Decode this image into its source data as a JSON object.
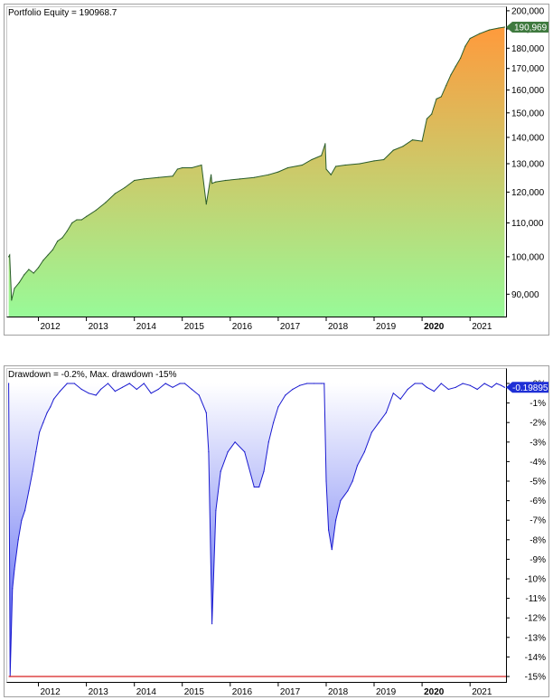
{
  "chart_data": [
    {
      "type": "area",
      "title": "Portfolio Equity = 190968.7",
      "last_value_label": "190,969",
      "x_tick_labels": [
        "2012",
        "2013",
        "2014",
        "2015",
        "2016",
        "2017",
        "2018",
        "2019",
        "2020",
        "2021"
      ],
      "bold_x_tick": "2020",
      "y_tick_labels": [
        "200,000",
        "190,000",
        "180,000",
        "170,000",
        "160,000",
        "150,000",
        "140,000",
        "130,000",
        "120,000",
        "110,000",
        "100,000",
        "90,000"
      ],
      "y_ticks": [
        200000,
        190000,
        180000,
        170000,
        160000,
        150000,
        140000,
        130000,
        120000,
        110000,
        100000,
        90000
      ],
      "y_scale": "log",
      "ylim": [
        84500,
        202000
      ],
      "xlim": [
        2011.35,
        2021.75
      ],
      "gradient_colors": [
        "#ff9a3c",
        "#98fa98"
      ],
      "line_color": "#2b5d2b",
      "x": [
        2011.38,
        2011.4,
        2011.44,
        2011.5,
        2011.6,
        2011.7,
        2011.8,
        2011.9,
        2012.0,
        2012.1,
        2012.2,
        2012.3,
        2012.4,
        2012.5,
        2012.6,
        2012.7,
        2012.8,
        2012.9,
        2013.0,
        2013.2,
        2013.4,
        2013.6,
        2013.8,
        2014.0,
        2014.2,
        2014.5,
        2014.8,
        2014.9,
        2015.0,
        2015.2,
        2015.4,
        2015.5,
        2015.6,
        2015.62,
        2015.7,
        2015.9,
        2016.2,
        2016.5,
        2016.8,
        2017.0,
        2017.2,
        2017.5,
        2017.7,
        2017.9,
        2017.98,
        2018.0,
        2018.1,
        2018.2,
        2018.4,
        2018.7,
        2019.0,
        2019.2,
        2019.4,
        2019.6,
        2019.8,
        2020.0,
        2020.1,
        2020.2,
        2020.3,
        2020.4,
        2020.5,
        2020.6,
        2020.7,
        2020.8,
        2020.9,
        2021.0,
        2021.2,
        2021.4,
        2021.6,
        2021.72
      ],
      "values": [
        100000,
        100500,
        88500,
        91500,
        93000,
        95000,
        96500,
        95500,
        97000,
        99000,
        100500,
        102000,
        104500,
        105500,
        107500,
        110000,
        111000,
        111000,
        112000,
        114000,
        116500,
        119500,
        121500,
        124000,
        124500,
        125000,
        125500,
        128000,
        128500,
        128500,
        129500,
        116000,
        126000,
        123000,
        123500,
        124000,
        124500,
        125000,
        126000,
        127000,
        128500,
        129500,
        131500,
        133000,
        137500,
        128000,
        126000,
        129000,
        129500,
        130000,
        131000,
        131500,
        135000,
        136500,
        139000,
        138500,
        147500,
        149500,
        156000,
        157000,
        162000,
        167000,
        171000,
        175000,
        181000,
        185000,
        187500,
        189500,
        190500,
        190969
      ]
    },
    {
      "type": "area",
      "title": "Drawdown = -0.2%, Max. drawdown -15%",
      "last_value_label": "-0.19895",
      "x_tick_labels": [
        "2012",
        "2013",
        "2014",
        "2015",
        "2016",
        "2017",
        "2018",
        "2019",
        "2020",
        "2021"
      ],
      "bold_x_tick": "2020",
      "y_tick_labels": [
        "0%",
        "-1%",
        "-2%",
        "-3%",
        "-4%",
        "-5%",
        "-6%",
        "-7%",
        "-8%",
        "-9%",
        "-10%",
        "-11%",
        "-12%",
        "-13%",
        "-14%",
        "-15%"
      ],
      "y_ticks": [
        0,
        -1,
        -2,
        -3,
        -4,
        -5,
        -6,
        -7,
        -8,
        -9,
        -10,
        -11,
        -12,
        -13,
        -14,
        -15
      ],
      "ylim": [
        -15.3,
        0.2
      ],
      "xlim": [
        2011.35,
        2021.75
      ],
      "gradient_colors": [
        "#ffffff",
        "#2a3aee"
      ],
      "line_color": "#1a1ad0",
      "max_drawdown_line": -15,
      "max_drawdown_color": "#d62020",
      "x": [
        2011.38,
        2011.41,
        2011.46,
        2011.5,
        2011.58,
        2011.65,
        2011.72,
        2011.8,
        2011.88,
        2011.95,
        2012.02,
        2012.1,
        2012.18,
        2012.25,
        2012.32,
        2012.45,
        2012.6,
        2012.75,
        2012.9,
        2013.05,
        2013.2,
        2013.3,
        2013.45,
        2013.6,
        2013.75,
        2013.9,
        2014.05,
        2014.2,
        2014.35,
        2014.5,
        2014.65,
        2014.8,
        2014.95,
        2015.05,
        2015.2,
        2015.35,
        2015.5,
        2015.55,
        2015.62,
        2015.7,
        2015.8,
        2015.95,
        2016.1,
        2016.3,
        2016.5,
        2016.6,
        2016.7,
        2016.8,
        2016.9,
        2017.0,
        2017.15,
        2017.3,
        2017.45,
        2017.6,
        2017.75,
        2017.9,
        2017.96,
        2018.0,
        2018.05,
        2018.12,
        2018.2,
        2018.3,
        2018.45,
        2018.55,
        2018.65,
        2018.8,
        2018.95,
        2019.1,
        2019.25,
        2019.4,
        2019.55,
        2019.7,
        2019.85,
        2020.0,
        2020.1,
        2020.25,
        2020.4,
        2020.55,
        2020.7,
        2020.85,
        2021.0,
        2021.15,
        2021.3,
        2021.45,
        2021.55,
        2021.65,
        2021.72
      ],
      "values": [
        0,
        -15,
        -10.5,
        -9.5,
        -8,
        -7,
        -6.5,
        -5.5,
        -4.5,
        -3.5,
        -2.5,
        -2,
        -1.5,
        -1.2,
        -0.8,
        -0.4,
        0,
        0,
        -0.3,
        -0.5,
        -0.6,
        -0.3,
        0,
        -0.4,
        -0.2,
        0,
        -0.3,
        0,
        -0.5,
        -0.3,
        0,
        -0.2,
        0,
        0,
        -0.3,
        -0.6,
        -1.5,
        -3.5,
        -12.3,
        -6.5,
        -4.5,
        -3.5,
        -3,
        -3.5,
        -5.3,
        -5.3,
        -4.5,
        -3,
        -2,
        -1.2,
        -0.6,
        -0.3,
        -0.1,
        0,
        0,
        0,
        0,
        -5,
        -7.5,
        -8.5,
        -7,
        -6,
        -5.5,
        -5,
        -4.2,
        -3.5,
        -2.5,
        -2,
        -1.5,
        -0.5,
        -0.8,
        -0.3,
        0,
        0,
        -0.2,
        -0.4,
        0,
        -0.3,
        -0.2,
        0,
        -0.1,
        -0.3,
        0,
        -0.2,
        0,
        -0.1,
        -0.2
      ]
    }
  ]
}
